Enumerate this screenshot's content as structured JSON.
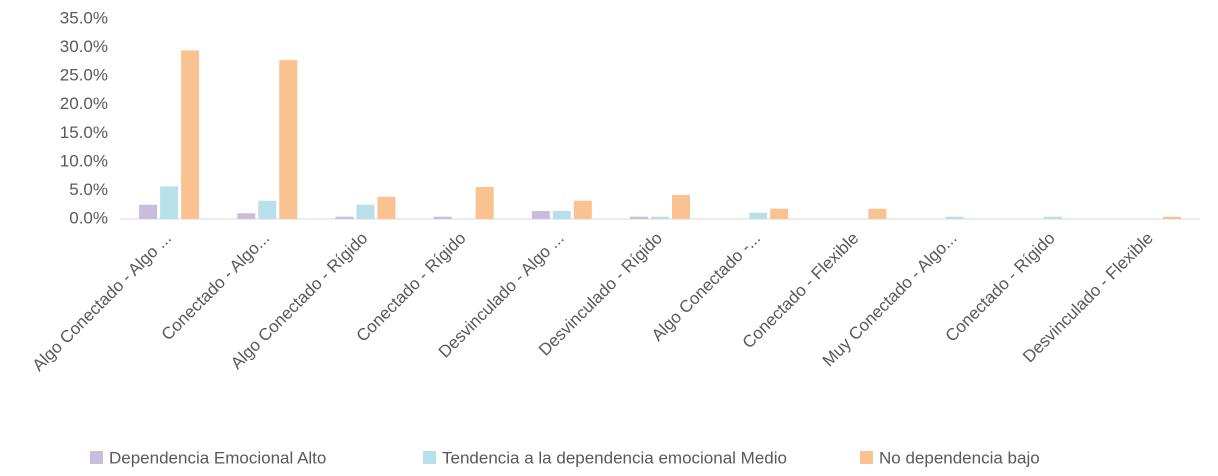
{
  "chart_data": {
    "type": "bar",
    "categories": [
      "Algo Conectado - Algo ...",
      "Conectado - Algo...",
      "Algo Conectado - Rígido",
      "Conectado - Rígido",
      "Desvinculado - Algo ...",
      "Desvinculado - Rígido",
      "Algo Conectado -...",
      "Conectado - Flexible",
      "Muy Conectado - Algo...",
      "Conectado - Rígido",
      "Desvinculado - Flexible"
    ],
    "series": [
      {
        "name": "Dependencia Emocional Alto",
        "color": "#c9bcdc",
        "values": [
          2.5,
          1.0,
          0.4,
          0.4,
          1.4,
          0.4,
          0,
          0,
          0,
          0,
          0
        ]
      },
      {
        "name": "Tendencia a la dependencia emocional Medio",
        "color": "#b8e0ea",
        "values": [
          5.7,
          3.2,
          2.5,
          0,
          1.4,
          0.4,
          1.1,
          0,
          0.4,
          0.4,
          0
        ]
      },
      {
        "name": "No dependencia bajo",
        "color": "#f9c290",
        "values": [
          29.5,
          27.8,
          3.9,
          5.6,
          3.2,
          4.2,
          1.8,
          1.8,
          0,
          0,
          0.4
        ]
      }
    ],
    "ylim": [
      0,
      35
    ],
    "yticks": [
      {
        "value": 0,
        "label": "0.0%"
      },
      {
        "value": 5,
        "label": "5.0%"
      },
      {
        "value": 10,
        "label": "10.0%"
      },
      {
        "value": 15,
        "label": "15.0%"
      },
      {
        "value": 20,
        "label": "20.0%"
      },
      {
        "value": 25,
        "label": "25.0%"
      },
      {
        "value": 30,
        "label": "30.0%"
      },
      {
        "value": 35,
        "label": "35.0%"
      }
    ],
    "grid": false,
    "legend": "bottom"
  }
}
